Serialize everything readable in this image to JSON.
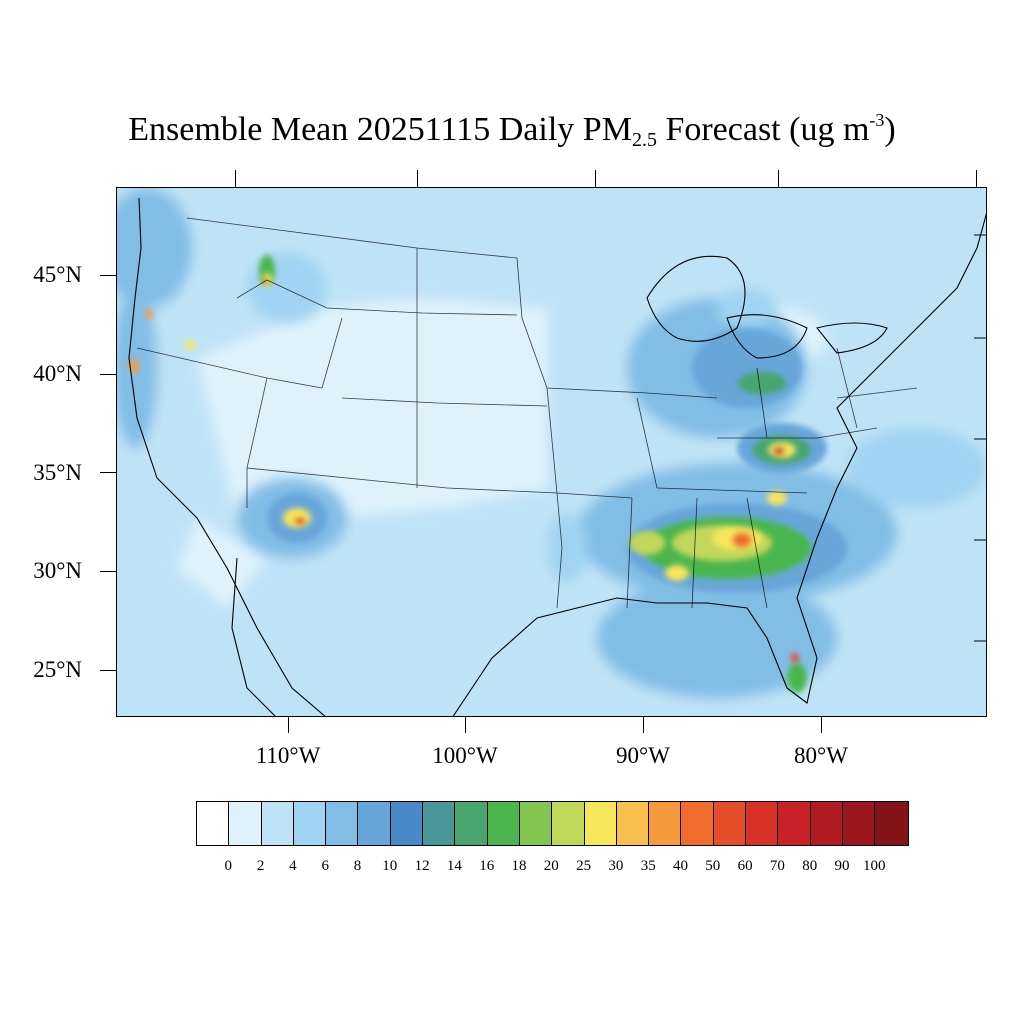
{
  "title": {
    "prefix": "Ensemble Mean 20251115 Daily PM",
    "subscript": "2.5",
    "middle": " Forecast (ug m",
    "superscript": "-3",
    "suffix": ")"
  },
  "map": {
    "lat_labels": [
      "45°N",
      "40°N",
      "35°N",
      "30°N",
      "25°N"
    ],
    "lon_labels": [
      "110°W",
      "100°W",
      "90°W",
      "80°W"
    ],
    "background_color": "#bfe3f6"
  },
  "colorbar": {
    "labels": [
      "0",
      "2",
      "4",
      "6",
      "8",
      "10",
      "12",
      "14",
      "16",
      "18",
      "20",
      "25",
      "30",
      "35",
      "40",
      "50",
      "60",
      "70",
      "80",
      "90",
      "100"
    ],
    "colors": [
      "#ffffff",
      "#dff2fc",
      "#bfe3f6",
      "#a0d4f2",
      "#82bde6",
      "#67a6da",
      "#4a89c8",
      "#4a979a",
      "#49a56f",
      "#4cb54d",
      "#84c54f",
      "#c1d75a",
      "#f6e65c",
      "#f8c04e",
      "#f79a3e",
      "#f26c2e",
      "#e54d2a",
      "#d83228",
      "#c82228",
      "#b31b24",
      "#9c171d",
      "#85141a"
    ]
  }
}
